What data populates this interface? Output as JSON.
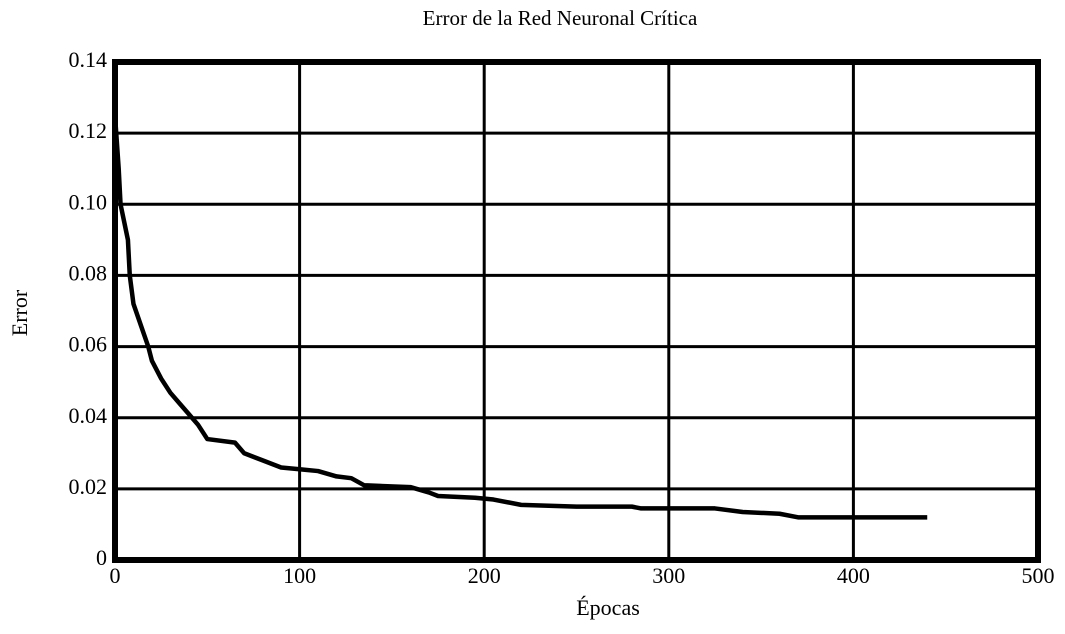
{
  "chart_data": {
    "type": "line",
    "title": "Error de la Red Neuronal Crítica",
    "xlabel": "Épocas",
    "ylabel": "Error",
    "x": [
      0,
      2,
      3,
      5,
      7,
      8,
      10,
      14,
      18,
      20,
      25,
      30,
      35,
      40,
      45,
      50,
      65,
      70,
      80,
      90,
      100,
      110,
      120,
      128,
      135,
      160,
      170,
      175,
      195,
      205,
      220,
      250,
      280,
      285,
      325,
      340,
      360,
      370,
      440
    ],
    "values": [
      0.125,
      0.11,
      0.1,
      0.095,
      0.09,
      0.08,
      0.072,
      0.066,
      0.06,
      0.056,
      0.051,
      0.047,
      0.044,
      0.041,
      0.038,
      0.034,
      0.033,
      0.03,
      0.028,
      0.026,
      0.0255,
      0.025,
      0.0235,
      0.023,
      0.021,
      0.0205,
      0.019,
      0.018,
      0.0175,
      0.017,
      0.0155,
      0.015,
      0.015,
      0.0145,
      0.0145,
      0.0135,
      0.013,
      0.012,
      0.012
    ],
    "color": "#000000",
    "xlim": [
      0,
      500
    ],
    "xticks": [
      0,
      100,
      200,
      300,
      400,
      500
    ],
    "ylim": [
      0,
      0.14
    ],
    "yticks": [
      0,
      0.02,
      0.04,
      0.06,
      0.08,
      {
        "value": 0.1,
        "label": "0.10"
      },
      0.12,
      0.14
    ],
    "grid": true
  }
}
